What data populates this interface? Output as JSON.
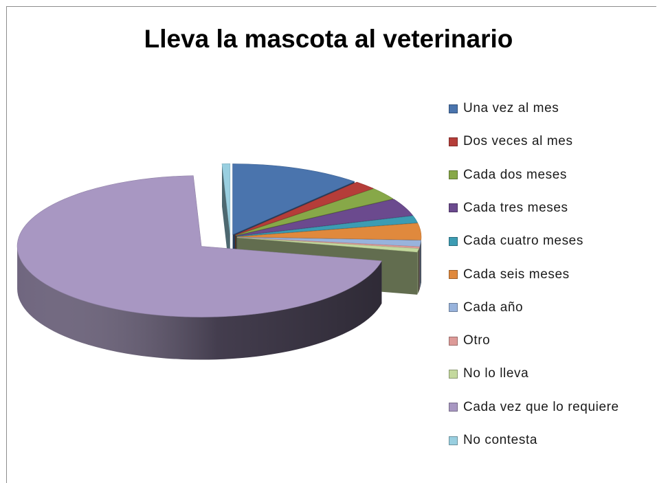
{
  "chart_data": {
    "type": "pie",
    "title": "Lleva la mascota al veterinario",
    "legend_position": "right",
    "categories": [
      "Una vez al mes",
      "Dos veces al mes",
      "Cada dos meses",
      "Cada tres meses",
      "Cada cuatro meses",
      "Cada seis meses",
      "Cada año",
      "Otro",
      "No lo lleva",
      "Cada vez que lo requiere",
      "No contesta"
    ],
    "values": [
      11.5,
      2.0,
      2.8,
      4.0,
      1.6,
      3.8,
      1.4,
      0.4,
      0.8,
      71.0,
      0.7
    ],
    "colors": [
      "#4a74ad",
      "#b53d39",
      "#87a848",
      "#6b4a8e",
      "#3c9cb3",
      "#e0893d",
      "#98b3dc",
      "#dd9a98",
      "#c4d99e",
      "#a897c2",
      "#99cfe0"
    ],
    "style": "3d-exploded"
  }
}
